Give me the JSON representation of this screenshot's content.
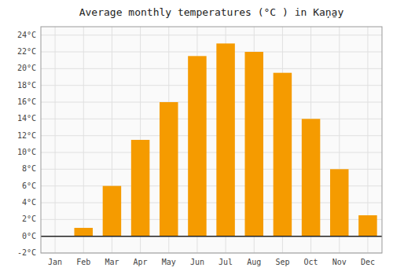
{
  "chart_data": {
    "type": "bar",
    "title": "Average monthly temperatures (°C ) in Kaņ̱ay",
    "categories": [
      "Jan",
      "Feb",
      "Mar",
      "Apr",
      "May",
      "Jun",
      "Jul",
      "Aug",
      "Sep",
      "Oct",
      "Nov",
      "Dec"
    ],
    "values": [
      0.0,
      1.0,
      6.0,
      11.5,
      16.0,
      21.5,
      23.0,
      22.0,
      19.5,
      14.0,
      8.0,
      2.5
    ],
    "color": "#F59B00",
    "ylim": [
      -2,
      25
    ],
    "yticks": [
      {
        "value": -2,
        "label": "-2°C"
      },
      {
        "value": 0,
        "label": "0°C"
      },
      {
        "value": 2,
        "label": "2°C"
      },
      {
        "value": 4,
        "label": "4°C"
      },
      {
        "value": 6,
        "label": "6°C"
      },
      {
        "value": 8,
        "label": "8°C"
      },
      {
        "value": 10,
        "label": "10°C"
      },
      {
        "value": 12,
        "label": "12°C"
      },
      {
        "value": 14,
        "label": "14°C"
      },
      {
        "value": 16,
        "label": "16°C"
      },
      {
        "value": 18,
        "label": "18°C"
      },
      {
        "value": 20,
        "label": "20°C"
      },
      {
        "value": 22,
        "label": "22°C"
      },
      {
        "value": 24,
        "label": "24°C"
      }
    ],
    "grid": true
  }
}
